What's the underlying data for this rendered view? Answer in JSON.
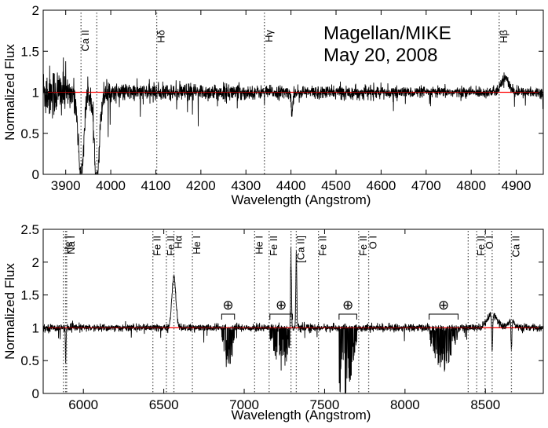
{
  "colors": {
    "spectrum": "#000000",
    "continuum": "#ff0000",
    "line_marker": "#555555"
  },
  "chart_data": [
    {
      "type": "line",
      "panel": "top",
      "title": "",
      "annotation": [
        "Magellan/MIKE",
        "May 20, 2008"
      ],
      "xlabel": "Wavelength  (Angstrom)",
      "ylabel": "Normalized Flux",
      "xlim": [
        3850,
        4960
      ],
      "ylim": [
        0,
        2
      ],
      "xticks": [
        3900,
        4000,
        4100,
        4200,
        4300,
        4400,
        4500,
        4600,
        4700,
        4800,
        4900
      ],
      "yticks": [
        0,
        0.5,
        1,
        1.5,
        2
      ],
      "ytick_labels": [
        "0",
        "0.5",
        "1",
        "1.5",
        "2"
      ],
      "continuum": 1.0,
      "line_markers": [
        {
          "x": 3934,
          "label": "Ca II"
        },
        {
          "x": 3969,
          "label": ""
        },
        {
          "x": 4102,
          "label": "Hδ"
        },
        {
          "x": 4341,
          "label": "Hγ"
        },
        {
          "x": 4862,
          "label": "Hβ"
        }
      ],
      "features": [
        {
          "type": "absorption",
          "center": 3934,
          "width": 6,
          "depth": 1.02
        },
        {
          "type": "absorption",
          "center": 3969,
          "width": 6,
          "depth": 1.02
        },
        {
          "type": "emission",
          "center": 4875,
          "width": 8,
          "height": 0.18
        },
        {
          "type": "absorption",
          "center": 4402,
          "width": 1.5,
          "depth": 0.3
        }
      ],
      "noise": [
        {
          "x": [
            3850,
            3900
          ],
          "sigma": 0.2
        },
        {
          "x": [
            3900,
            4000
          ],
          "sigma": 0.1
        },
        {
          "x": [
            4000,
            4300
          ],
          "sigma": 0.065
        },
        {
          "x": [
            4300,
            4600
          ],
          "sigma": 0.05
        },
        {
          "x": [
            4600,
            4960
          ],
          "sigma": 0.04
        }
      ]
    },
    {
      "type": "line",
      "panel": "bottom",
      "title": "",
      "xlabel": "Wavelength  (Angstrom)",
      "ylabel": "Normalized Flux",
      "xlim": [
        5750,
        8860
      ],
      "ylim": [
        0,
        2.5
      ],
      "xticks": [
        6000,
        6500,
        7000,
        7500,
        8000,
        8500
      ],
      "yticks": [
        0,
        0.5,
        1,
        1.5,
        2,
        2.5
      ],
      "ytick_labels": [
        "0",
        "0.5",
        "1",
        "1.5",
        "2",
        "2.5"
      ],
      "continuum": 1.0,
      "line_markers": [
        {
          "x": 5876,
          "label": "He I"
        },
        {
          "x": 5890,
          "label": ""
        },
        {
          "x": 5896,
          "label": "Na I"
        },
        {
          "x": 6432,
          "label": "Fe II"
        },
        {
          "x": 6516,
          "label": "Fe II"
        },
        {
          "x": 6563,
          "label": "Hα"
        },
        {
          "x": 6678,
          "label": "He I"
        },
        {
          "x": 7065,
          "label": "He I"
        },
        {
          "x": 7155,
          "label": "Fe II"
        },
        {
          "x": 7291,
          "label": ""
        },
        {
          "x": 7324,
          "label": "[Ca II]"
        },
        {
          "x": 7462,
          "label": "Fe II"
        },
        {
          "x": 7712,
          "label": "Fe II"
        },
        {
          "x": 7774,
          "label": "O I"
        },
        {
          "x": 8393,
          "label": ""
        },
        {
          "x": 8446,
          "label": "Fe II"
        },
        {
          "x": 8498,
          "label": "O I"
        },
        {
          "x": 8542,
          "label": ""
        },
        {
          "x": 8662,
          "label": "Ca II"
        }
      ],
      "telluric_bands": [
        {
          "x": [
            6860,
            6940
          ],
          "label": "⊕"
        },
        {
          "x": [
            7160,
            7300
          ],
          "label": "⊕"
        },
        {
          "x": [
            7590,
            7700
          ],
          "label": "⊕"
        },
        {
          "x": [
            8150,
            8330
          ],
          "label": "⊕"
        }
      ],
      "features": [
        {
          "type": "emission",
          "center": 6563,
          "width": 12,
          "height": 0.8
        },
        {
          "type": "emission",
          "center": 7291,
          "width": 3,
          "height": 1.25
        },
        {
          "type": "emission",
          "center": 7324,
          "width": 3,
          "height": 1.15
        },
        {
          "type": "emission",
          "center": 8542,
          "width": 30,
          "height": 0.22
        },
        {
          "type": "emission",
          "center": 8662,
          "width": 15,
          "height": 0.15
        },
        {
          "type": "absorption",
          "center": 5890,
          "width": 2,
          "depth": 0.5
        },
        {
          "type": "absorption",
          "center": 8542,
          "width": 3,
          "depth": 0.6
        },
        {
          "type": "absorption",
          "center": 8662,
          "width": 3,
          "depth": 0.45
        }
      ],
      "noise": [
        {
          "x": [
            5750,
            8860
          ],
          "sigma": 0.035
        }
      ]
    }
  ]
}
